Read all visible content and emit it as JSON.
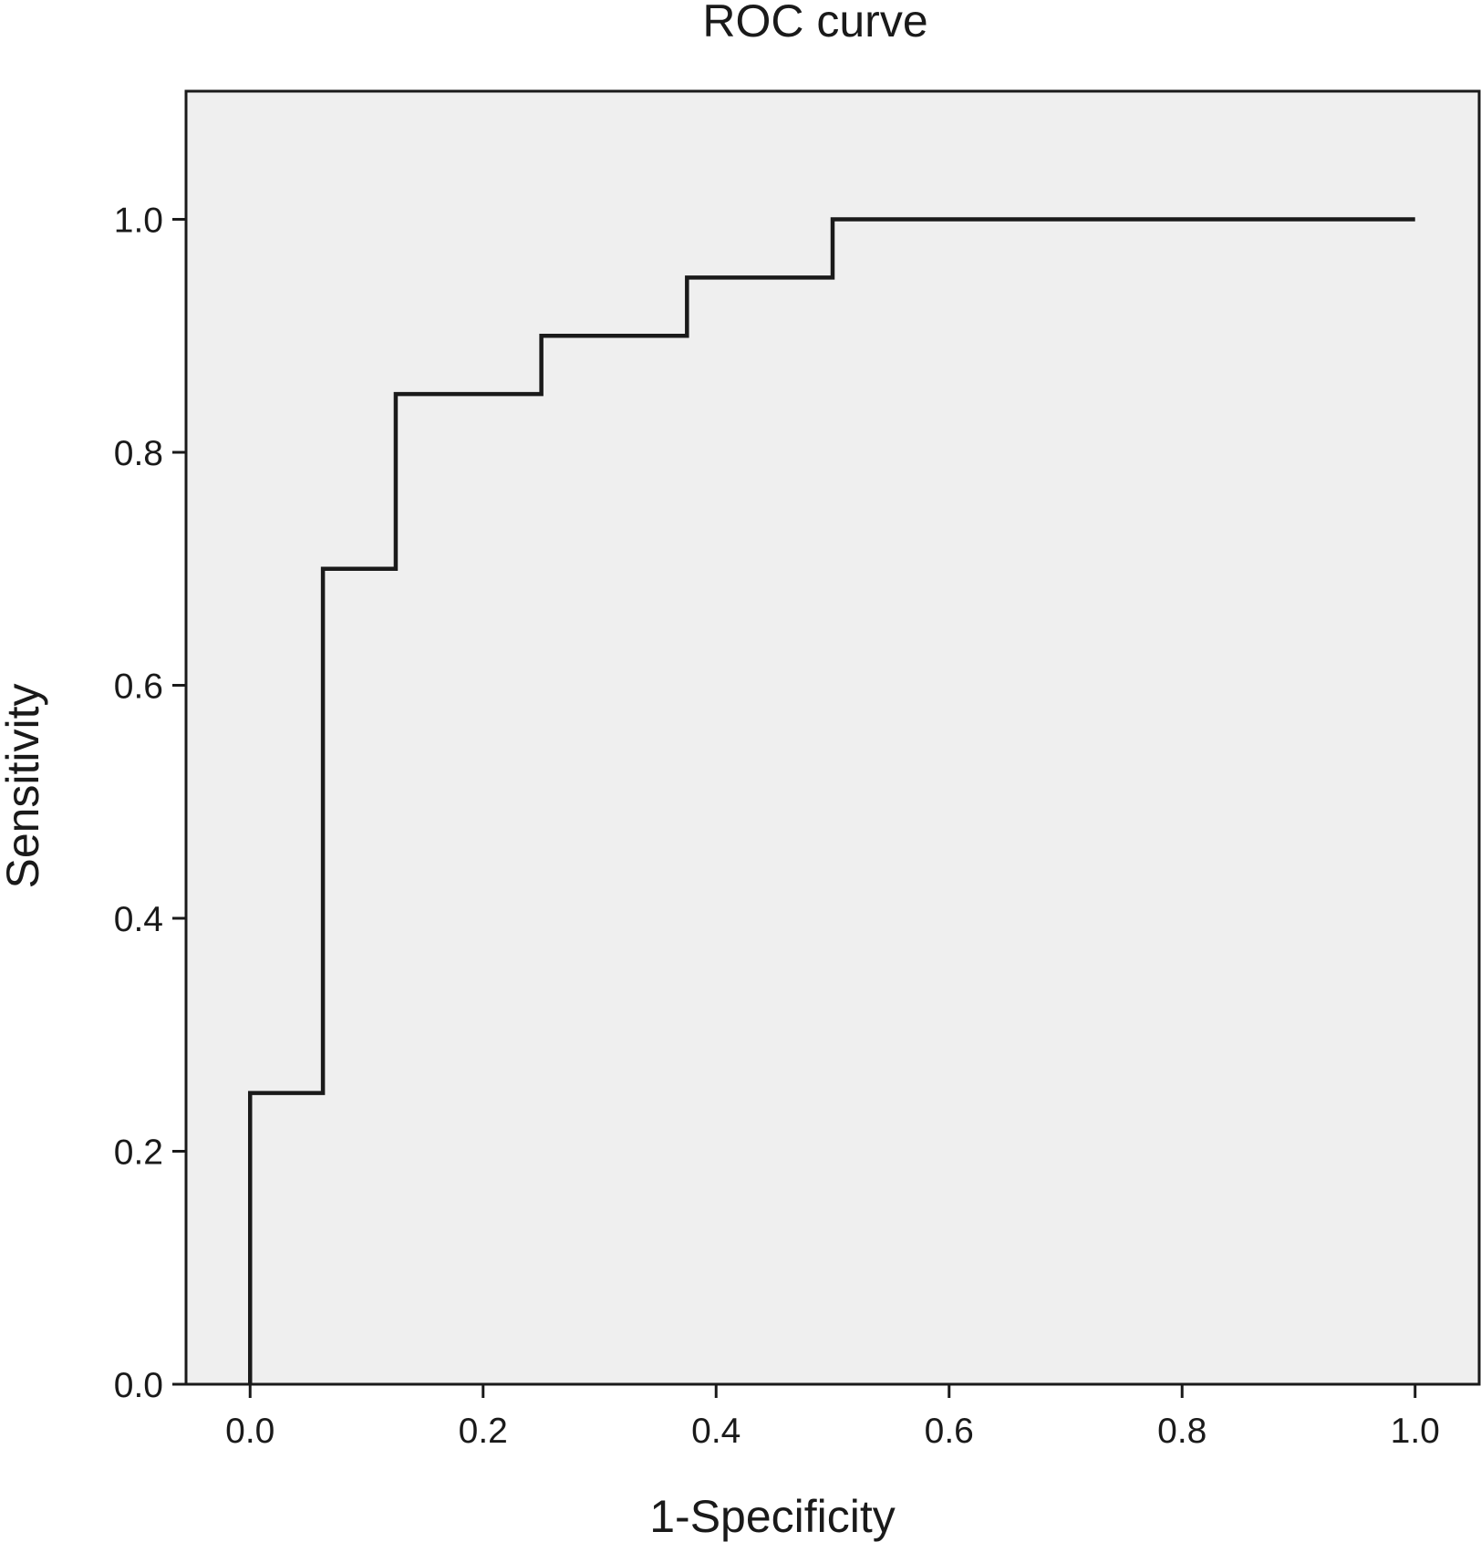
{
  "chart_data": {
    "type": "line",
    "step": true,
    "title": "ROC curve",
    "xlabel": "1-Specificity",
    "ylabel": "Sensitivity",
    "xlim": [
      -0.055,
      1.055
    ],
    "ylim": [
      0.0,
      1.11
    ],
    "xticks": [
      0.0,
      0.2,
      0.4,
      0.6,
      0.8,
      1.0
    ],
    "yticks": [
      0.0,
      0.2,
      0.4,
      0.6,
      0.8,
      1.0
    ],
    "xtick_labels": [
      "0.0",
      "0.2",
      "0.4",
      "0.6",
      "0.8",
      "1.0"
    ],
    "ytick_labels": [
      "0.0",
      "0.2",
      "0.4",
      "0.6",
      "0.8",
      "1.0"
    ],
    "grid": false,
    "plot_background": "#efefef",
    "line_color": "#1a1a1a",
    "series": [
      {
        "x": [
          0.0,
          0.0,
          0.0625,
          0.0625,
          0.125,
          0.125,
          0.25,
          0.25,
          0.375,
          0.375,
          0.5,
          0.5,
          1.0
        ],
        "y": [
          0.0,
          0.25,
          0.25,
          0.7,
          0.7,
          0.85,
          0.85,
          0.9,
          0.9,
          0.95,
          0.95,
          1.0,
          1.0
        ]
      }
    ]
  }
}
